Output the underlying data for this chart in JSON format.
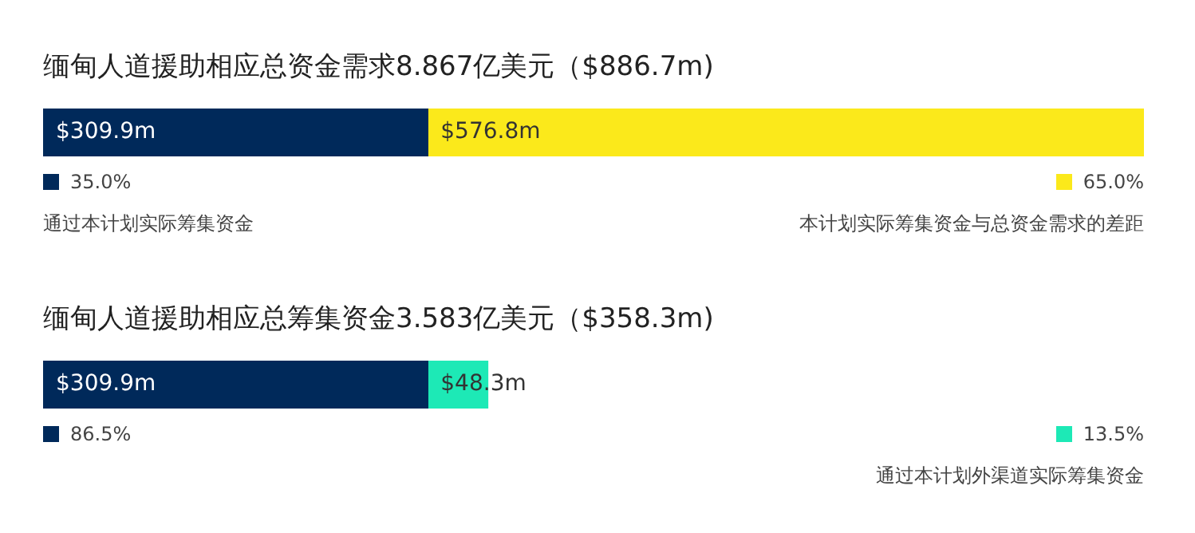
{
  "chart_data": [
    {
      "type": "bar",
      "orientation": "horizontal",
      "stacked": true,
      "title": "缅甸人道援助相应总资金需求8.867亿美元（$886.7m)",
      "categories": [
        null
      ],
      "tick_labels": false,
      "grid": false,
      "legend": "bottom",
      "series": [
        {
          "name": "通过本计划实际筹集资金",
          "color": "#00295a",
          "values": [
            309.9
          ],
          "value_labels": [
            "$309.9m"
          ]
        },
        {
          "name": "本计划实际筹集资金与总资金需求的差距",
          "color": "#fbe91b",
          "values": [
            576.8
          ],
          "value_labels": [
            "$576.8m"
          ]
        }
      ],
      "annotations": [
        "35.0%",
        "65.0%"
      ]
    },
    {
      "type": "bar",
      "orientation": "horizontal",
      "stacked": true,
      "title": "缅甸人道援助相应总筹集资金3.583亿美元（$358.3m)",
      "categories": [
        null
      ],
      "tick_labels": false,
      "grid": false,
      "legend": "bottom",
      "series": [
        {
          "color": "#00295a",
          "values": [
            309.9
          ],
          "value_labels": [
            "$309.9m"
          ]
        },
        {
          "name": "通过本计划外渠道实际筹集资金",
          "color": "#1de9b6",
          "values": [
            48.3
          ],
          "value_labels": [
            "$48.3m"
          ]
        }
      ],
      "annotations": [
        "86.5%",
        "13.5%"
      ]
    }
  ]
}
